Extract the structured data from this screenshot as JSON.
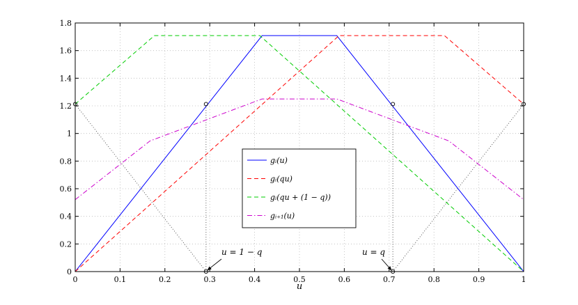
{
  "chart_data": {
    "type": "line",
    "title": "",
    "xlabel": "u",
    "ylabel": "",
    "xlim": [
      0,
      1
    ],
    "ylim": [
      0,
      1.8
    ],
    "xticks": [
      0,
      0.1,
      0.2,
      0.3,
      0.4,
      0.5,
      0.6,
      0.7,
      0.8,
      0.9,
      1
    ],
    "xtick_labels": [
      "0",
      "0.1",
      "0.2",
      "0.3",
      "0.4",
      "0.5",
      "0.6",
      "0.7",
      "0.8",
      "0.9",
      "1"
    ],
    "yticks": [
      0,
      0.2,
      0.4,
      0.6,
      0.8,
      1,
      1.2,
      1.4,
      1.6,
      1.8
    ],
    "ytick_labels": [
      "0",
      "0.2",
      "0.4",
      "0.6",
      "0.8",
      "1",
      "1.2",
      "1.4",
      "1.6",
      "1.8"
    ],
    "grid": true,
    "legend_position": "center",
    "series": [
      {
        "name": "g_i(u)",
        "legend_label": "gᵢ(u)",
        "color": "#0000ff",
        "style": "solid",
        "x": [
          0,
          0.4167,
          0.5833,
          1
        ],
        "y": [
          0,
          1.7083,
          1.7083,
          0
        ]
      },
      {
        "name": "g_i(qu)",
        "legend_label": "gᵢ(qu)",
        "color": "#ff0000",
        "style": "dashed",
        "x": [
          0,
          0.5882,
          0.8235,
          1
        ],
        "y": [
          0,
          1.7083,
          1.7083,
          1.2125
        ]
      },
      {
        "name": "g_i(qu+(1-q))",
        "legend_label": "gᵢ(qu + (1 − q))",
        "color": "#00cc00",
        "style": "dashed",
        "x": [
          0,
          0.1765,
          0.4118,
          1
        ],
        "y": [
          1.2125,
          1.7083,
          1.7083,
          0
        ]
      },
      {
        "name": "g_{i+1}(u)",
        "legend_label": "gᵢ₊₁(u)",
        "color": "#cc00cc",
        "style": "dashdot",
        "x": [
          0,
          0.1667,
          0.4167,
          0.5833,
          0.8333,
          1
        ],
        "y": [
          0.5208,
          0.9458,
          1.25,
          1.25,
          0.9458,
          0.5208
        ]
      }
    ],
    "guides": [
      {
        "x": [
          0,
          0.2917
        ],
        "y": [
          1.2125,
          0
        ]
      },
      {
        "x": [
          0.2917,
          0.2917
        ],
        "y": [
          0,
          1.2125
        ]
      },
      {
        "x": [
          0.7083,
          0.7083
        ],
        "y": [
          0,
          1.2125
        ]
      },
      {
        "x": [
          0.7083,
          1
        ],
        "y": [
          0,
          1.2125
        ]
      }
    ],
    "markers": [
      {
        "x": 0,
        "y": 1.2125
      },
      {
        "x": 0.2917,
        "y": 1.2125
      },
      {
        "x": 0.7083,
        "y": 1.2125
      },
      {
        "x": 1,
        "y": 1.2125
      },
      {
        "x": 0.2917,
        "y": 0
      },
      {
        "x": 0.7083,
        "y": 0
      }
    ],
    "annotations": [
      {
        "text": "u = 1 − q",
        "x": 0.2917,
        "y": 0
      },
      {
        "text": "u = q",
        "x": 0.7083,
        "y": 0
      }
    ]
  }
}
